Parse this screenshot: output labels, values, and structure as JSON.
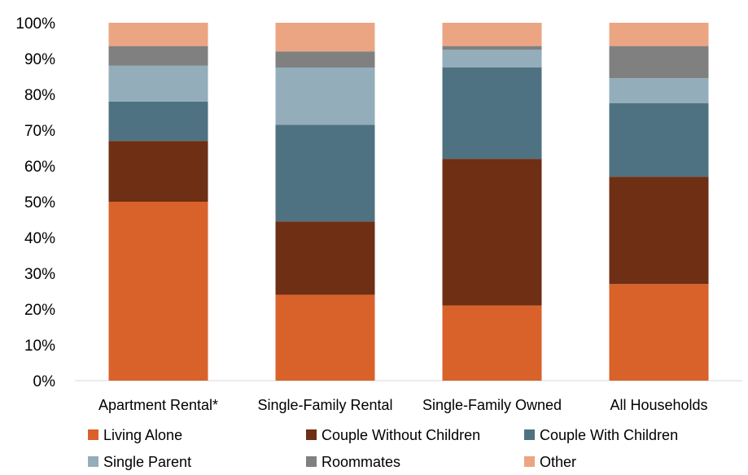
{
  "chart_data": {
    "type": "bar",
    "stacked": true,
    "categories": [
      "Apartment Rental*",
      "Single-Family Rental",
      "Single-Family Owned",
      "All Households"
    ],
    "series": [
      {
        "name": "Living Alone",
        "color": "#D9622B",
        "values": [
          50,
          24,
          21,
          27
        ]
      },
      {
        "name": "Couple Without Children",
        "color": "#6E2F14",
        "values": [
          17,
          20.5,
          41,
          30
        ]
      },
      {
        "name": "Couple With Children",
        "color": "#4F7282",
        "values": [
          11,
          27,
          25.5,
          20.5
        ]
      },
      {
        "name": "Single Parent",
        "color": "#93ADBA",
        "values": [
          10,
          16,
          5,
          7
        ]
      },
      {
        "name": "Roommates",
        "color": "#808080",
        "values": [
          5.5,
          4.5,
          1,
          9
        ]
      },
      {
        "name": "Other",
        "color": "#EBA583",
        "values": [
          6.5,
          8,
          6.5,
          6.5
        ]
      }
    ],
    "ylim": [
      0,
      100
    ],
    "y_ticks": [
      "0%",
      "10%",
      "20%",
      "30%",
      "40%",
      "50%",
      "60%",
      "70%",
      "80%",
      "90%",
      "100%"
    ],
    "grid": false,
    "legend_position": "bottom"
  }
}
